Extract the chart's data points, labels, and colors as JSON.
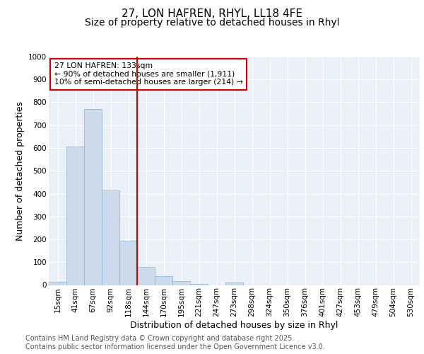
{
  "title1": "27, LON HAFREN, RHYL, LL18 4FE",
  "title2": "Size of property relative to detached houses in Rhyl",
  "xlabel": "Distribution of detached houses by size in Rhyl",
  "ylabel": "Number of detached properties",
  "bin_labels": [
    "15sqm",
    "41sqm",
    "67sqm",
    "92sqm",
    "118sqm",
    "144sqm",
    "170sqm",
    "195sqm",
    "221sqm",
    "247sqm",
    "273sqm",
    "298sqm",
    "324sqm",
    "350sqm",
    "376sqm",
    "401sqm",
    "427sqm",
    "453sqm",
    "479sqm",
    "504sqm",
    "530sqm"
  ],
  "bar_values": [
    13,
    607,
    770,
    413,
    195,
    78,
    40,
    16,
    5,
    0,
    11,
    0,
    0,
    0,
    0,
    0,
    0,
    0,
    0,
    0,
    0
  ],
  "bar_color": "#ccdaeb",
  "bar_edge_color": "#8ab0cc",
  "vline_color": "#cc0000",
  "ylim": [
    0,
    1000
  ],
  "yticks": [
    0,
    100,
    200,
    300,
    400,
    500,
    600,
    700,
    800,
    900,
    1000
  ],
  "annotation_text_line1": "27 LON HAFREN: 133sqm",
  "annotation_text_line2": "← 90% of detached houses are smaller (1,911)",
  "annotation_text_line3": "10% of semi-detached houses are larger (214) →",
  "annotation_box_color": "#cc0000",
  "bg_color": "#eaf0f8",
  "footer_text": "Contains HM Land Registry data © Crown copyright and database right 2025.\nContains public sector information licensed under the Open Government Licence v3.0.",
  "title_fontsize": 11,
  "subtitle_fontsize": 10,
  "axis_label_fontsize": 9,
  "tick_fontsize": 7.5,
  "footer_fontsize": 7
}
